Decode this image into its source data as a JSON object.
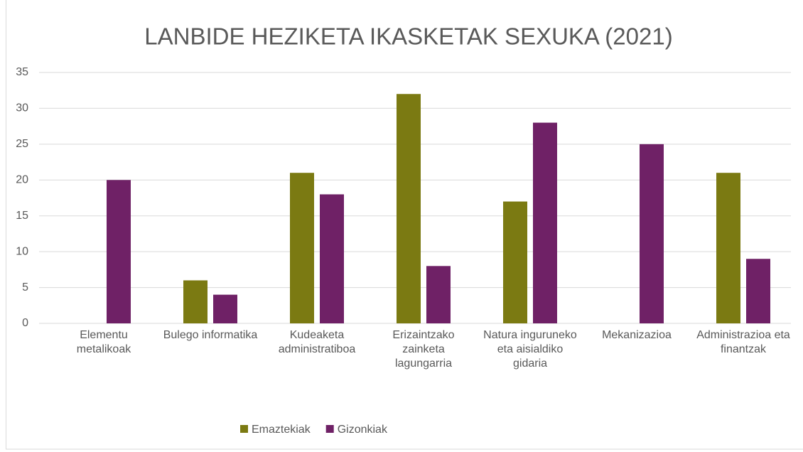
{
  "chart_data": {
    "type": "bar",
    "title": "LANBIDE HEZIKETA IKASKETAK SEXUKA (2021)",
    "categories": [
      "Elementu metalikoak",
      "Bulego informatika",
      "Kudeaketa administratiboa",
      "Erizaintzako zainketa lagungarria",
      "Natura inguruneko eta aisialdiko gidaria",
      "Mekanizazioa",
      "Administrazioa eta finantzak"
    ],
    "series": [
      {
        "name": "Emaztekiak",
        "color": "#7b7a12",
        "values": [
          0,
          6,
          21,
          32,
          17,
          0,
          21
        ]
      },
      {
        "name": "Gizonkiak",
        "color": "#6f2166",
        "values": [
          20,
          4,
          18,
          8,
          28,
          25,
          9
        ]
      }
    ],
    "ylim": [
      0,
      35
    ],
    "yticks": [
      0,
      5,
      10,
      15,
      20,
      25,
      30,
      35
    ],
    "grid": true,
    "legend": "bottom"
  }
}
